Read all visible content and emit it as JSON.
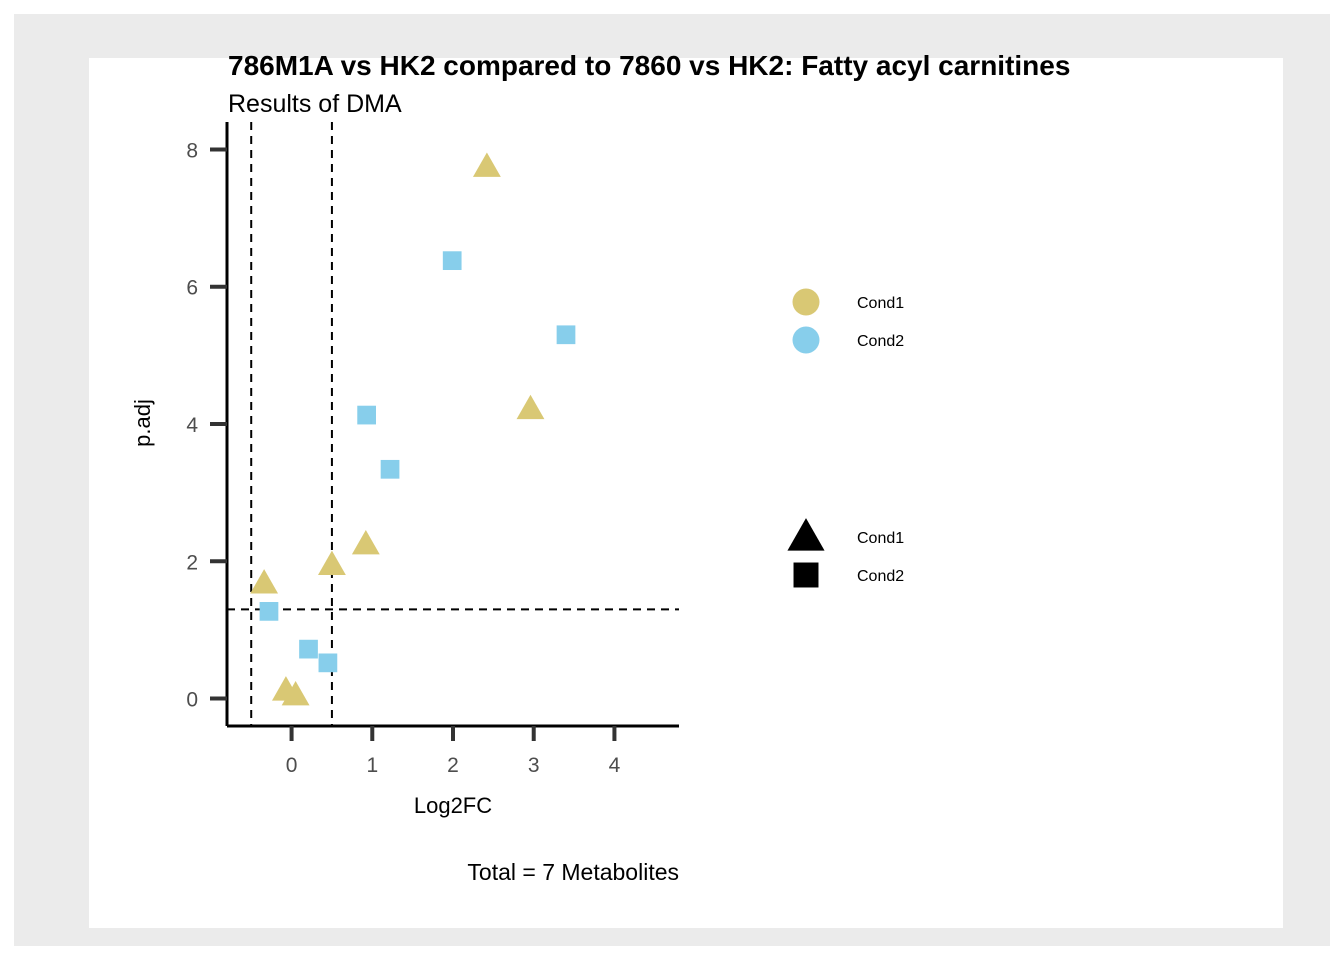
{
  "chart_data": {
    "type": "scatter",
    "title": "786M1A vs HK2 compared to 7860 vs HK2: Fatty acyl carnitines",
    "subtitle": "Results of DMA",
    "xlabel": "Log2FC",
    "ylabel": "p.adj",
    "caption": "Total = 7 Metabolites",
    "xlim": [
      -0.8,
      4.8
    ],
    "ylim": [
      -0.4,
      8.4
    ],
    "x_ticks": [
      0,
      1,
      2,
      3,
      4
    ],
    "y_ticks": [
      0,
      2,
      4,
      6,
      8
    ],
    "vlines": [
      -0.5,
      0.5
    ],
    "hline": 1.3,
    "series": [
      {
        "name": "Cond1",
        "color": "#d9c874",
        "shape": "triangle",
        "points": [
          {
            "x": 2.42,
            "y": 7.75
          },
          {
            "x": 2.96,
            "y": 4.22
          },
          {
            "x": 0.92,
            "y": 2.25
          },
          {
            "x": 0.5,
            "y": 1.95
          },
          {
            "x": -0.34,
            "y": 1.68
          },
          {
            "x": -0.07,
            "y": 0.12
          },
          {
            "x": 0.05,
            "y": 0.05
          }
        ]
      },
      {
        "name": "Cond2",
        "color": "#87ceeb",
        "shape": "square",
        "points": [
          {
            "x": 1.99,
            "y": 6.38
          },
          {
            "x": 3.4,
            "y": 5.3
          },
          {
            "x": 0.93,
            "y": 4.13
          },
          {
            "x": 1.22,
            "y": 3.34
          },
          {
            "x": -0.28,
            "y": 1.27
          },
          {
            "x": 0.21,
            "y": 0.72
          },
          {
            "x": 0.45,
            "y": 0.52
          }
        ]
      }
    ],
    "legend_color": {
      "items": [
        {
          "label": "Cond1",
          "color": "#d9c874"
        },
        {
          "label": "Cond2",
          "color": "#87ceeb"
        }
      ]
    },
    "legend_shape": {
      "items": [
        {
          "label": "Cond1",
          "shape": "triangle"
        },
        {
          "label": "Cond2",
          "shape": "square"
        }
      ]
    },
    "legend_placement": "right",
    "grid": false
  }
}
